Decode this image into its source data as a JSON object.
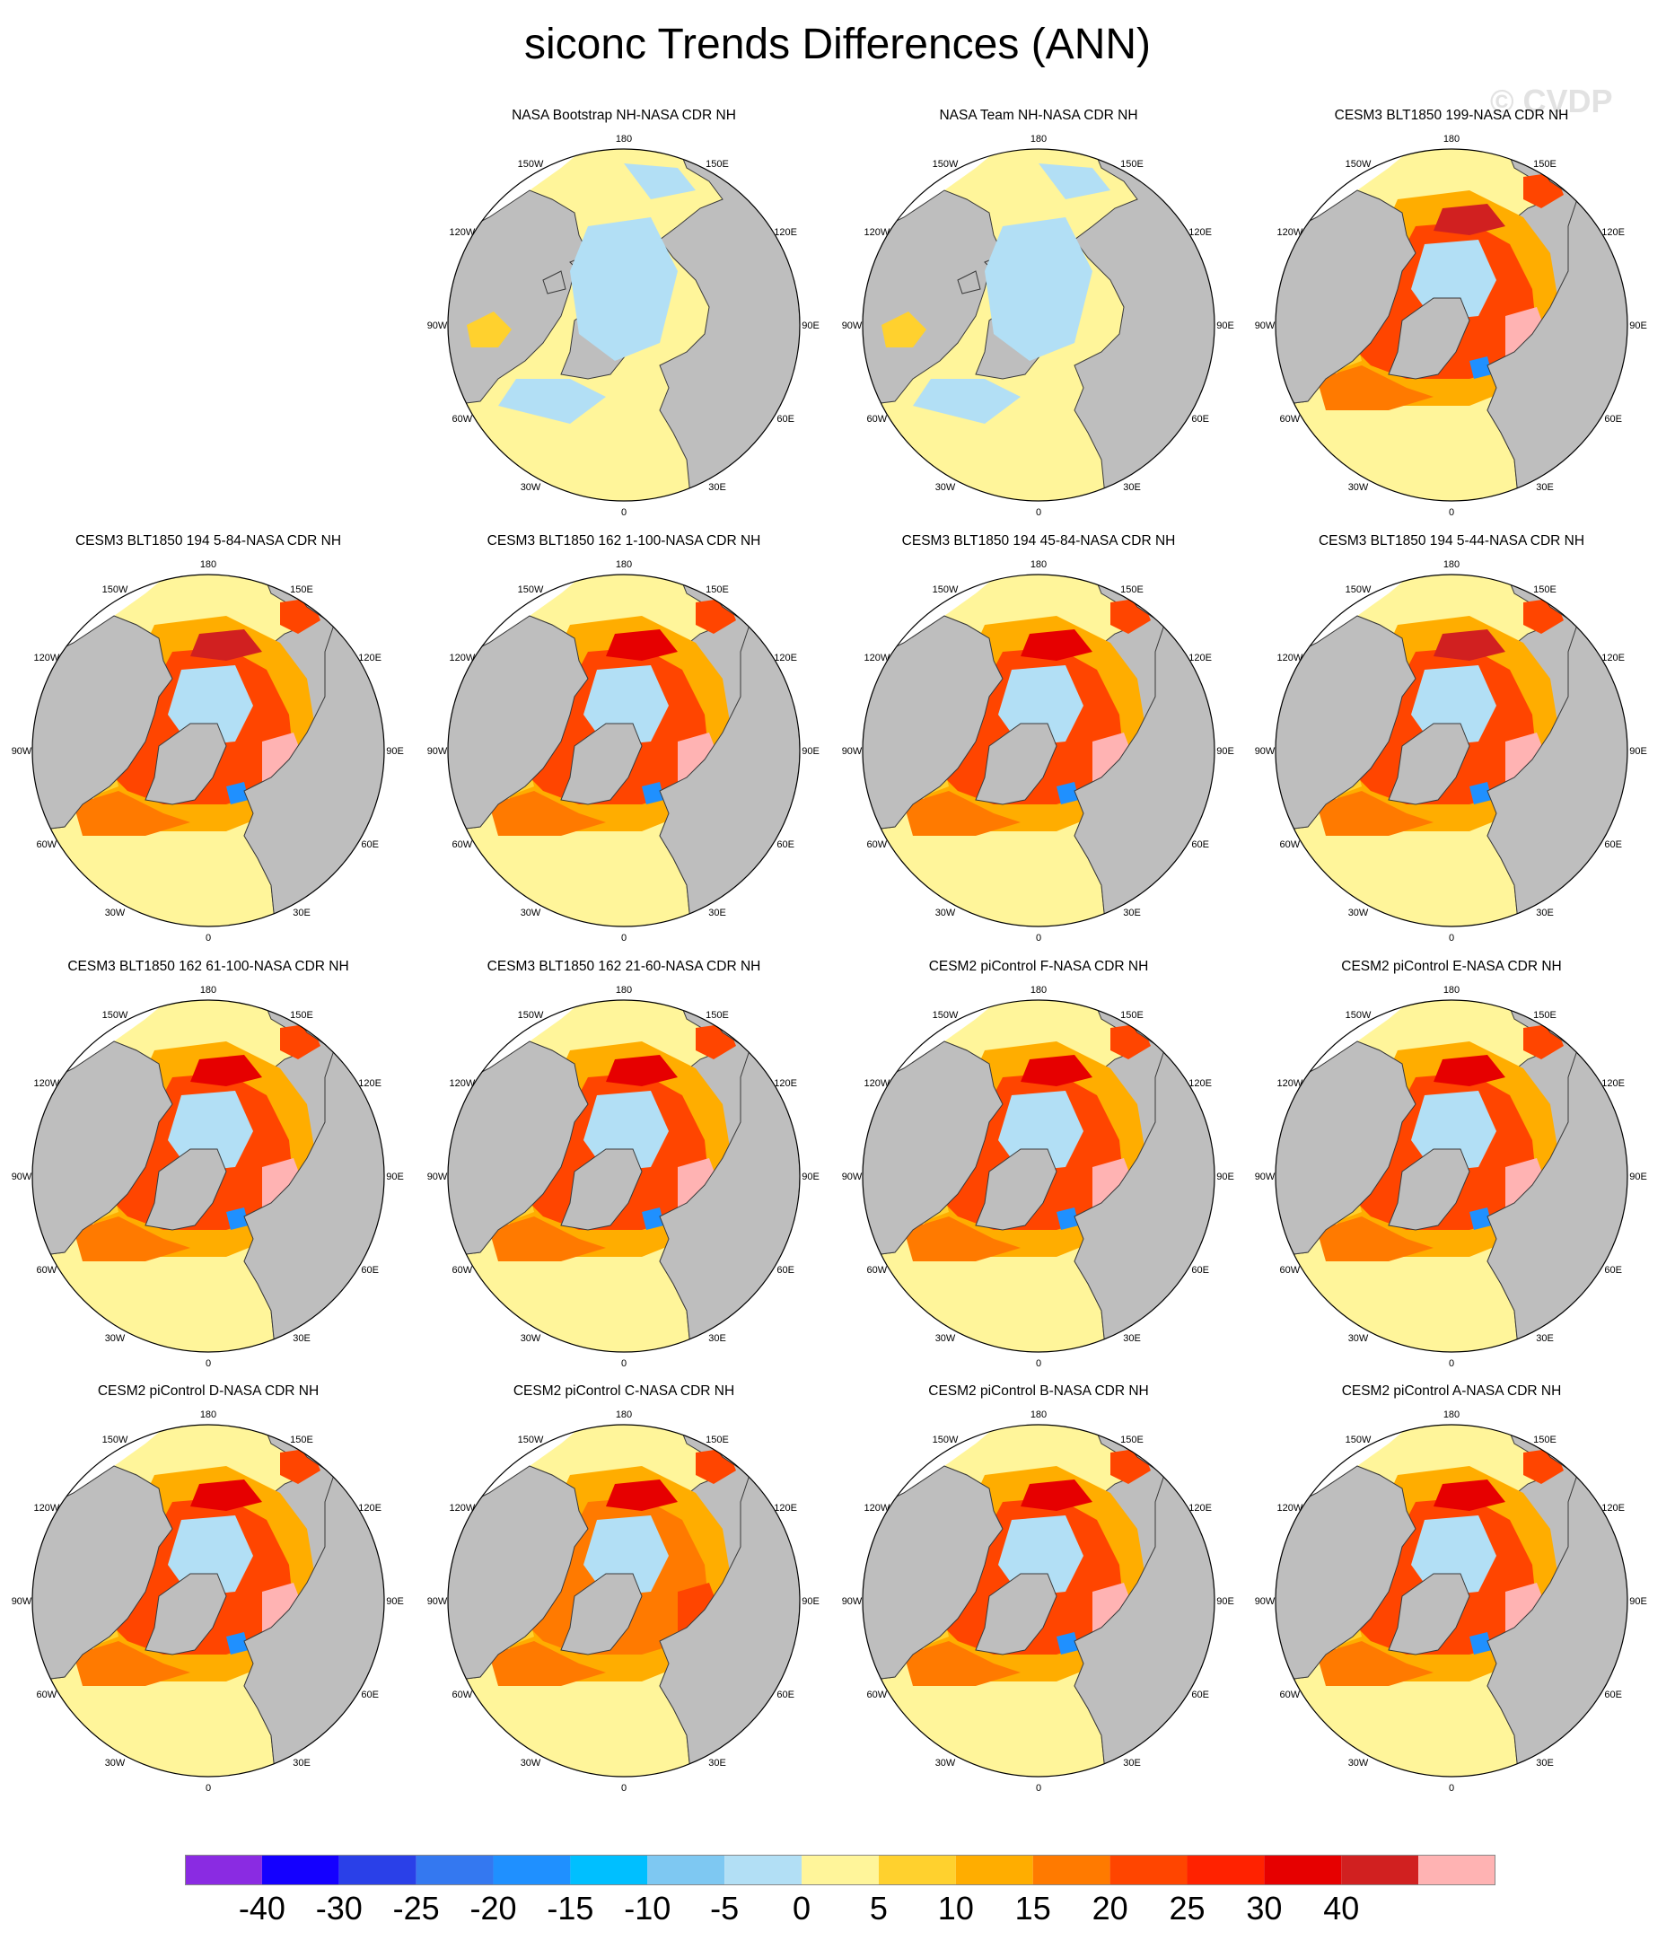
{
  "title": "siconc Trends Differences (ANN)",
  "watermark": "© CVDP",
  "colors": {
    "land": "#bebebe",
    "nodata": "#ffffff",
    "coast": "#3a3a3a"
  },
  "longitude_labels": [
    "180",
    "150E",
    "120E",
    "90E",
    "60E",
    "30E",
    "0",
    "30W",
    "60W",
    "90W",
    "120W",
    "150W"
  ],
  "panels": [
    {
      "title": "NASA Bootstrap NH-NASA CDR NH",
      "intensity": 0
    },
    {
      "title": "NASA Team NH-NASA CDR NH",
      "intensity": 0
    },
    {
      "title": "CESM3 BLT1850 199-NASA CDR NH",
      "intensity": 3
    },
    {
      "title": "CESM3 BLT1850 194 5-84-NASA CDR NH",
      "intensity": 3
    },
    {
      "title": "CESM3 BLT1850 162 1-100-NASA CDR NH",
      "intensity": 2
    },
    {
      "title": "CESM3 BLT1850 194 45-84-NASA CDR NH",
      "intensity": 2
    },
    {
      "title": "CESM3 BLT1850 194 5-44-NASA CDR NH",
      "intensity": 3
    },
    {
      "title": "CESM3 BLT1850 162 61-100-NASA CDR NH",
      "intensity": 2
    },
    {
      "title": "CESM3 BLT1850 162 21-60-NASA CDR NH",
      "intensity": 2
    },
    {
      "title": "CESM2 piControl F-NASA CDR NH",
      "intensity": 2
    },
    {
      "title": "CESM2 piControl E-NASA CDR NH",
      "intensity": 2
    },
    {
      "title": "CESM2 piControl D-NASA CDR NH",
      "intensity": 2
    },
    {
      "title": "CESM2 piControl C-NASA CDR NH",
      "intensity": 1
    },
    {
      "title": "CESM2 piControl B-NASA CDR NH",
      "intensity": 2
    },
    {
      "title": "CESM2 piControl A-NASA CDR NH",
      "intensity": 2
    }
  ],
  "colorbar": {
    "colors": [
      "#8a2be2",
      "#1400ff",
      "#2a40e8",
      "#3478f0",
      "#1f90ff",
      "#00bfff",
      "#7ec8f2",
      "#b2dff5",
      "#fff59a",
      "#ffd12e",
      "#ffad00",
      "#ff7a00",
      "#ff4500",
      "#ff2200",
      "#e60000",
      "#d12020",
      "#ffb3b3"
    ],
    "labels": [
      "-40",
      "-30",
      "-25",
      "-20",
      "-15",
      "-10",
      "-5",
      "0",
      "5",
      "10",
      "15",
      "20",
      "25",
      "30",
      "40"
    ]
  }
}
